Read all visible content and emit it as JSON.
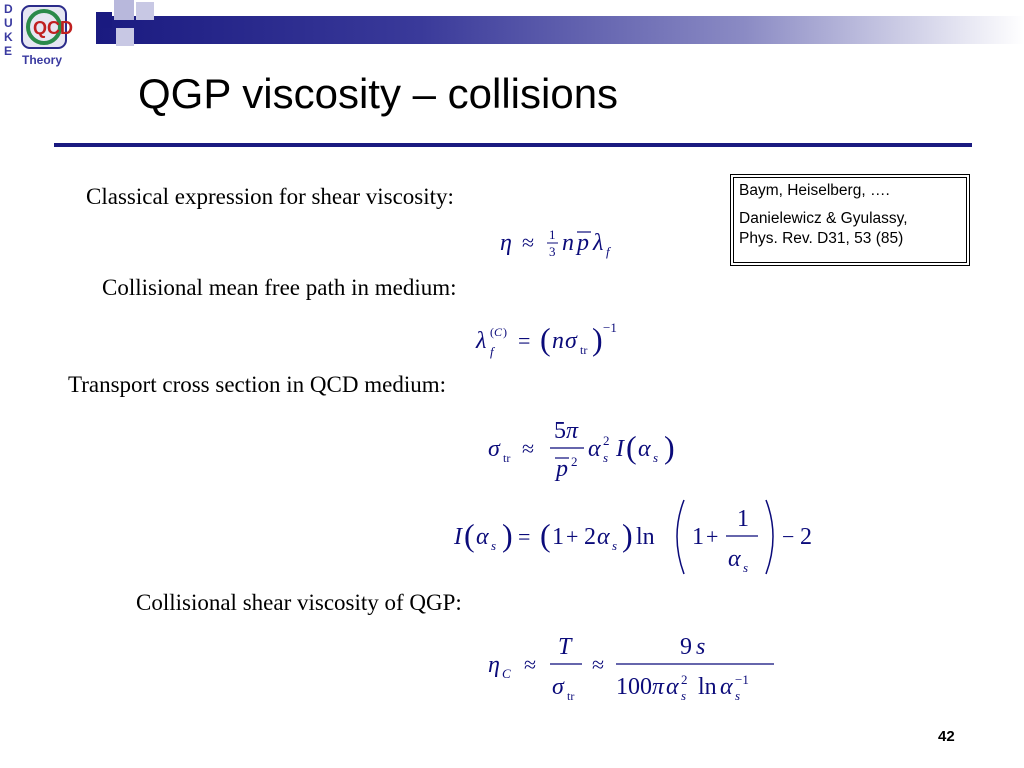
{
  "logo": {
    "letters": [
      "D",
      "U",
      "K",
      "E"
    ],
    "center": "QCD",
    "caption": "Theory"
  },
  "slide": {
    "title": "QGP viscosity – collisions",
    "page_number": "42"
  },
  "labels": {
    "classical": "Classical expression for shear viscosity:",
    "mean_free_path": "Collisional mean free path in medium:",
    "cross_section": "Transport cross section in QCD medium:",
    "shear_qgp": "Collisional shear viscosity of QGP:"
  },
  "reference": {
    "line1": "Baym, Heiselberg, ….",
    "line2": "Danielewicz & Gyulassy,",
    "line3": "Phys. Rev. D31, 53 (85)"
  },
  "colors": {
    "accent": "#1a1a80",
    "equation": "#0b0b7a"
  }
}
